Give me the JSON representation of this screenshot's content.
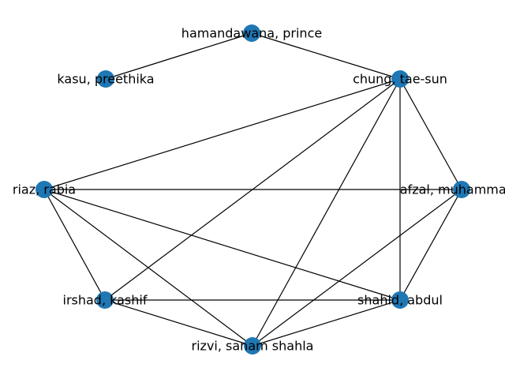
{
  "colors": {
    "background": "#ffffff",
    "node_fill": "#1f77b4",
    "edge": "#000000",
    "label": "#000000"
  },
  "nodes": [
    {
      "id": "hamandawana",
      "label": "hamandawana, prince"
    },
    {
      "id": "kasu",
      "label": "kasu, preethika"
    },
    {
      "id": "chung",
      "label": "chung, tae-sun"
    },
    {
      "id": "riaz",
      "label": "riaz, rabia"
    },
    {
      "id": "afzal",
      "label": "afzal, muhammad t"
    },
    {
      "id": "irshad",
      "label": "irshad, kashif"
    },
    {
      "id": "shahid",
      "label": "shahid, abdul"
    },
    {
      "id": "rizvi",
      "label": "rizvi, sanam shahla"
    }
  ],
  "edges": [
    [
      "hamandawana",
      "kasu"
    ],
    [
      "hamandawana",
      "chung"
    ],
    [
      "chung",
      "riaz"
    ],
    [
      "chung",
      "irshad"
    ],
    [
      "chung",
      "rizvi"
    ],
    [
      "chung",
      "shahid"
    ],
    [
      "chung",
      "afzal"
    ],
    [
      "riaz",
      "afzal"
    ],
    [
      "riaz",
      "irshad"
    ],
    [
      "riaz",
      "rizvi"
    ],
    [
      "riaz",
      "shahid"
    ],
    [
      "irshad",
      "shahid"
    ],
    [
      "irshad",
      "rizvi"
    ],
    [
      "rizvi",
      "shahid"
    ],
    [
      "rizvi",
      "afzal"
    ],
    [
      "shahid",
      "afzal"
    ]
  ]
}
